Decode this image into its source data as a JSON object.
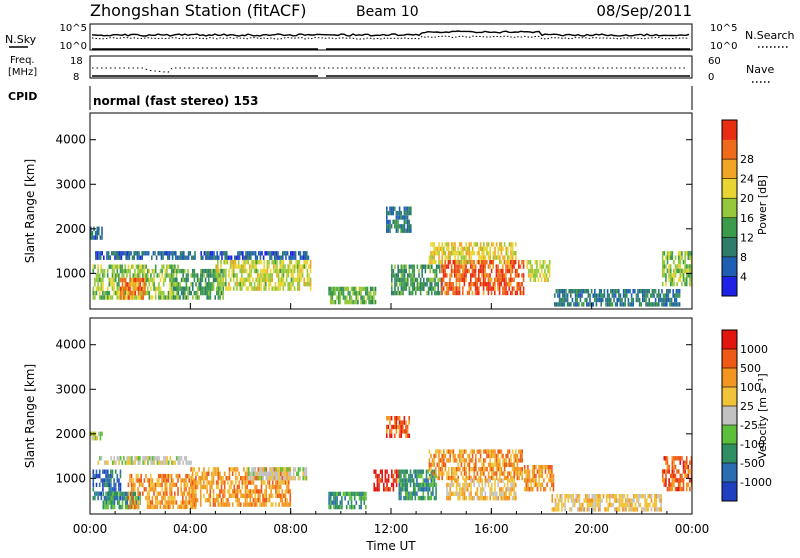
{
  "header": {
    "station": "Zhongshan Station (fitACF)",
    "beam": "Beam 10",
    "date": "08/Sep/2011"
  },
  "top_panels": {
    "nsky_label": "N.Sky",
    "nsky_ticks": [
      "10^5",
      "10^0"
    ],
    "nsearch_label": "N.Search",
    "nsearch_ticks": [
      "10^5",
      "10^0"
    ],
    "freq_label": "Freq.",
    "freq_unit": "[MHz]",
    "freq_ticks": [
      "18",
      "8"
    ],
    "nave_label": "Nave",
    "nave_ticks": [
      "60",
      "0"
    ],
    "cpid_label": "CPID",
    "cpid_value": "normal (fast stereo) 153"
  },
  "chart_data": [
    {
      "type": "heatmap",
      "name": "power",
      "ylabel": "Slant Range [km]",
      "y_ticks": [
        1000,
        2000,
        3000,
        4000
      ],
      "ylim": [
        200,
        4600
      ],
      "xlim": [
        0,
        24
      ],
      "colorbar": {
        "label": "Power [dB]",
        "ticks": [
          "4",
          "8",
          "12",
          "16",
          "20",
          "24",
          "28"
        ],
        "range": [
          0,
          32
        ],
        "colors": [
          "#1e22e6",
          "#1f5fb3",
          "#2e7d6a",
          "#3b9b4a",
          "#93c83a",
          "#e9d532",
          "#f2a423",
          "#ef6a1b",
          "#e82d12"
        ]
      },
      "regions": [
        {
          "t0": 0.0,
          "t1": 0.45,
          "r0": 1850,
          "r1": 2050,
          "value": 6
        },
        {
          "t0": 0.2,
          "t1": 4.2,
          "r0": 1350,
          "r1": 1500,
          "value": 6
        },
        {
          "t0": 0.1,
          "t1": 3.5,
          "r0": 500,
          "r1": 1200,
          "value": 16
        },
        {
          "t0": 1.2,
          "t1": 2.2,
          "r0": 500,
          "r1": 900,
          "value": 26
        },
        {
          "t0": 3.3,
          "t1": 5.3,
          "r0": 450,
          "r1": 1100,
          "value": 12
        },
        {
          "t0": 5.0,
          "t1": 8.8,
          "r0": 650,
          "r1": 1300,
          "value": 18
        },
        {
          "t0": 4.4,
          "t1": 8.7,
          "r0": 1350,
          "r1": 1500,
          "value": 6
        },
        {
          "t0": 9.5,
          "t1": 11.4,
          "r0": 350,
          "r1": 700,
          "value": 14
        },
        {
          "t0": 11.8,
          "t1": 12.8,
          "r0": 2000,
          "r1": 2500,
          "value": 8
        },
        {
          "t0": 12.0,
          "t1": 14.0,
          "r0": 600,
          "r1": 1200,
          "value": 12
        },
        {
          "t0": 13.5,
          "t1": 17.0,
          "r0": 1250,
          "r1": 1700,
          "value": 20
        },
        {
          "t0": 14.0,
          "t1": 17.3,
          "r0": 550,
          "r1": 1300,
          "value": 28
        },
        {
          "t0": 17.4,
          "t1": 18.3,
          "r0": 850,
          "r1": 1300,
          "value": 18
        },
        {
          "t0": 18.5,
          "t1": 23.5,
          "r0": 300,
          "r1": 650,
          "value": 8
        },
        {
          "t0": 22.8,
          "t1": 24.0,
          "r0": 800,
          "r1": 1500,
          "value": 16
        }
      ]
    },
    {
      "type": "heatmap",
      "name": "velocity",
      "ylabel": "Slant Range [km]",
      "y_ticks": [
        1000,
        2000,
        3000,
        4000
      ],
      "ylim": [
        200,
        4600
      ],
      "xlim": [
        0,
        24
      ],
      "colorbar": {
        "label": "Velocity [m s^-1]",
        "ticks": [
          "1000",
          "500",
          "100",
          "25",
          "-25",
          "-100",
          "-500",
          "-1000"
        ],
        "colors": [
          "#1e3fbf",
          "#2a6db0",
          "#2f8e62",
          "#5cbf3a",
          "#c2c2c2",
          "#f1c33a",
          "#f3961f",
          "#ee5a16",
          "#e3160f"
        ]
      },
      "regions": [
        {
          "t0": 0.0,
          "t1": 0.5,
          "r0": 1900,
          "r1": 2050,
          "level": 4
        },
        {
          "t0": 0.3,
          "t1": 4.0,
          "r0": 1350,
          "r1": 1500,
          "level": 4
        },
        {
          "t0": 0.1,
          "t1": 1.2,
          "r0": 600,
          "r1": 1200,
          "level": 1
        },
        {
          "t0": 0.5,
          "t1": 2.0,
          "r0": 400,
          "r1": 700,
          "level": 2
        },
        {
          "t0": 1.5,
          "t1": 4.2,
          "r0": 400,
          "r1": 1100,
          "level": 6
        },
        {
          "t0": 4.0,
          "t1": 8.0,
          "r0": 450,
          "r1": 1250,
          "level": 6
        },
        {
          "t0": 6.3,
          "t1": 8.6,
          "r0": 1000,
          "r1": 1250,
          "level": 4
        },
        {
          "t0": 9.5,
          "t1": 11.0,
          "r0": 350,
          "r1": 700,
          "level": 2
        },
        {
          "t0": 11.3,
          "t1": 12.3,
          "r0": 800,
          "r1": 1200,
          "level": 8
        },
        {
          "t0": 11.8,
          "t1": 12.7,
          "r0": 2000,
          "r1": 2400,
          "level": 7
        },
        {
          "t0": 12.3,
          "t1": 13.8,
          "r0": 600,
          "r1": 1200,
          "level": 2
        },
        {
          "t0": 13.5,
          "t1": 17.2,
          "r0": 1000,
          "r1": 1650,
          "level": 6
        },
        {
          "t0": 14.2,
          "t1": 17.0,
          "r0": 550,
          "r1": 1000,
          "level": 5
        },
        {
          "t0": 17.3,
          "t1": 18.5,
          "r0": 800,
          "r1": 1300,
          "level": 6
        },
        {
          "t0": 18.4,
          "t1": 22.8,
          "r0": 300,
          "r1": 650,
          "level": 5
        },
        {
          "t0": 22.8,
          "t1": 24.0,
          "r0": 800,
          "r1": 1500,
          "level": 7
        }
      ]
    }
  ],
  "x_axis": {
    "ticks": [
      "00:00",
      "04:00",
      "08:00",
      "12:00",
      "16:00",
      "20:00",
      "00:00"
    ],
    "label": "Time UT"
  },
  "power_axis": {
    "label": "Slant Range [km]"
  },
  "velocity_axis": {
    "label": "Slant Range [km]"
  },
  "power_colorbar": {
    "label": "Power [dB]"
  },
  "velocity_colorbar": {
    "label": "Velocity [m s⁻¹]"
  }
}
